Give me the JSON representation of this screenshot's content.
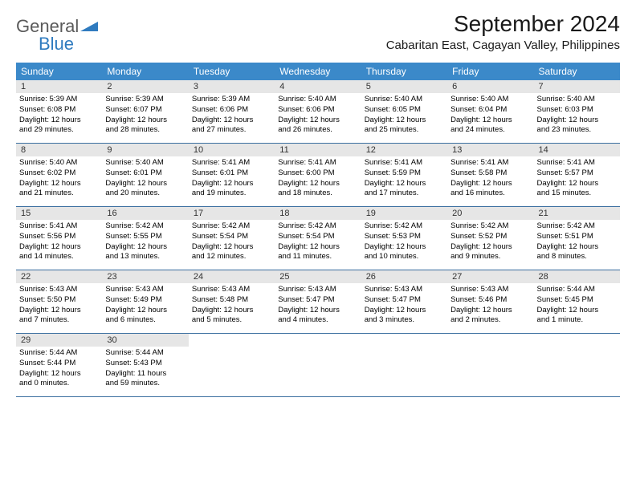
{
  "logo": {
    "general": "General",
    "blue": "Blue"
  },
  "title": "September 2024",
  "location": "Cabaritan East, Cagayan Valley, Philippines",
  "dayHeaders": [
    "Sunday",
    "Monday",
    "Tuesday",
    "Wednesday",
    "Thursday",
    "Friday",
    "Saturday"
  ],
  "header_bg": "#3b89c9",
  "daynum_bg": "#e6e6e6",
  "border_color": "#3b6fa0",
  "weeks": [
    [
      {
        "num": "1",
        "sunrise": "5:39 AM",
        "sunset": "6:08 PM",
        "dl1": "12 hours",
        "dl2": "29 minutes"
      },
      {
        "num": "2",
        "sunrise": "5:39 AM",
        "sunset": "6:07 PM",
        "dl1": "12 hours",
        "dl2": "28 minutes"
      },
      {
        "num": "3",
        "sunrise": "5:39 AM",
        "sunset": "6:06 PM",
        "dl1": "12 hours",
        "dl2": "27 minutes"
      },
      {
        "num": "4",
        "sunrise": "5:40 AM",
        "sunset": "6:06 PM",
        "dl1": "12 hours",
        "dl2": "26 minutes"
      },
      {
        "num": "5",
        "sunrise": "5:40 AM",
        "sunset": "6:05 PM",
        "dl1": "12 hours",
        "dl2": "25 minutes"
      },
      {
        "num": "6",
        "sunrise": "5:40 AM",
        "sunset": "6:04 PM",
        "dl1": "12 hours",
        "dl2": "24 minutes"
      },
      {
        "num": "7",
        "sunrise": "5:40 AM",
        "sunset": "6:03 PM",
        "dl1": "12 hours",
        "dl2": "23 minutes"
      }
    ],
    [
      {
        "num": "8",
        "sunrise": "5:40 AM",
        "sunset": "6:02 PM",
        "dl1": "12 hours",
        "dl2": "21 minutes"
      },
      {
        "num": "9",
        "sunrise": "5:40 AM",
        "sunset": "6:01 PM",
        "dl1": "12 hours",
        "dl2": "20 minutes"
      },
      {
        "num": "10",
        "sunrise": "5:41 AM",
        "sunset": "6:01 PM",
        "dl1": "12 hours",
        "dl2": "19 minutes"
      },
      {
        "num": "11",
        "sunrise": "5:41 AM",
        "sunset": "6:00 PM",
        "dl1": "12 hours",
        "dl2": "18 minutes"
      },
      {
        "num": "12",
        "sunrise": "5:41 AM",
        "sunset": "5:59 PM",
        "dl1": "12 hours",
        "dl2": "17 minutes"
      },
      {
        "num": "13",
        "sunrise": "5:41 AM",
        "sunset": "5:58 PM",
        "dl1": "12 hours",
        "dl2": "16 minutes"
      },
      {
        "num": "14",
        "sunrise": "5:41 AM",
        "sunset": "5:57 PM",
        "dl1": "12 hours",
        "dl2": "15 minutes"
      }
    ],
    [
      {
        "num": "15",
        "sunrise": "5:41 AM",
        "sunset": "5:56 PM",
        "dl1": "12 hours",
        "dl2": "14 minutes"
      },
      {
        "num": "16",
        "sunrise": "5:42 AM",
        "sunset": "5:55 PM",
        "dl1": "12 hours",
        "dl2": "13 minutes"
      },
      {
        "num": "17",
        "sunrise": "5:42 AM",
        "sunset": "5:54 PM",
        "dl1": "12 hours",
        "dl2": "12 minutes"
      },
      {
        "num": "18",
        "sunrise": "5:42 AM",
        "sunset": "5:54 PM",
        "dl1": "12 hours",
        "dl2": "11 minutes"
      },
      {
        "num": "19",
        "sunrise": "5:42 AM",
        "sunset": "5:53 PM",
        "dl1": "12 hours",
        "dl2": "10 minutes"
      },
      {
        "num": "20",
        "sunrise": "5:42 AM",
        "sunset": "5:52 PM",
        "dl1": "12 hours",
        "dl2": "9 minutes"
      },
      {
        "num": "21",
        "sunrise": "5:42 AM",
        "sunset": "5:51 PM",
        "dl1": "12 hours",
        "dl2": "8 minutes"
      }
    ],
    [
      {
        "num": "22",
        "sunrise": "5:43 AM",
        "sunset": "5:50 PM",
        "dl1": "12 hours",
        "dl2": "7 minutes"
      },
      {
        "num": "23",
        "sunrise": "5:43 AM",
        "sunset": "5:49 PM",
        "dl1": "12 hours",
        "dl2": "6 minutes"
      },
      {
        "num": "24",
        "sunrise": "5:43 AM",
        "sunset": "5:48 PM",
        "dl1": "12 hours",
        "dl2": "5 minutes"
      },
      {
        "num": "25",
        "sunrise": "5:43 AM",
        "sunset": "5:47 PM",
        "dl1": "12 hours",
        "dl2": "4 minutes"
      },
      {
        "num": "26",
        "sunrise": "5:43 AM",
        "sunset": "5:47 PM",
        "dl1": "12 hours",
        "dl2": "3 minutes"
      },
      {
        "num": "27",
        "sunrise": "5:43 AM",
        "sunset": "5:46 PM",
        "dl1": "12 hours",
        "dl2": "2 minutes"
      },
      {
        "num": "28",
        "sunrise": "5:44 AM",
        "sunset": "5:45 PM",
        "dl1": "12 hours",
        "dl2": "1 minute"
      }
    ],
    [
      {
        "num": "29",
        "sunrise": "5:44 AM",
        "sunset": "5:44 PM",
        "dl1": "12 hours",
        "dl2": "0 minutes"
      },
      {
        "num": "30",
        "sunrise": "5:44 AM",
        "sunset": "5:43 PM",
        "dl1": "11 hours",
        "dl2": "59 minutes"
      },
      null,
      null,
      null,
      null,
      null
    ]
  ]
}
